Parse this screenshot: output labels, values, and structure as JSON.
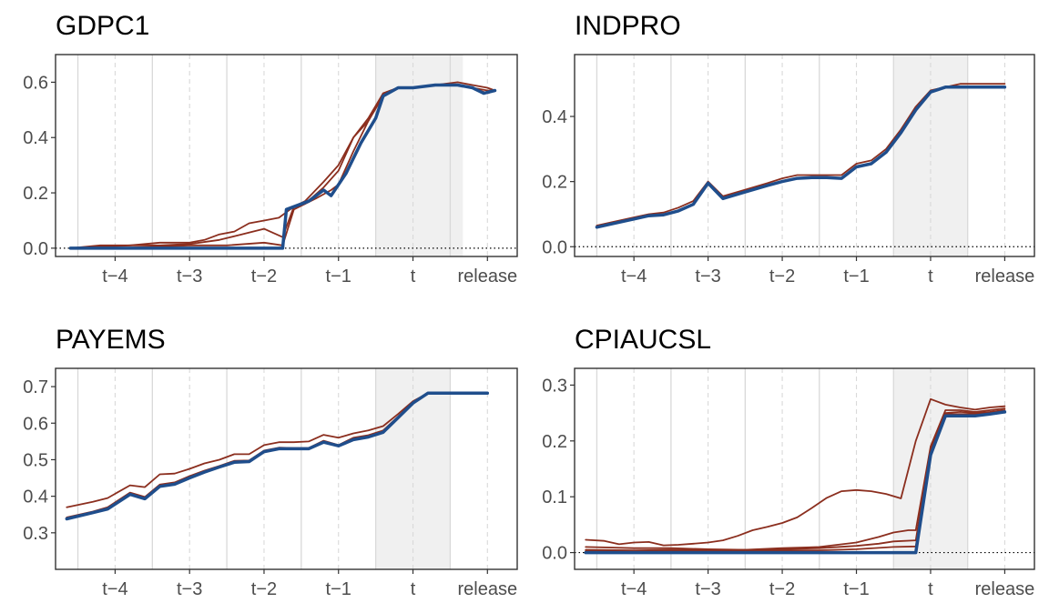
{
  "chart_data": [
    {
      "type": "line",
      "title": "GDPC1",
      "xlabel": "",
      "ylabel": "",
      "x_tick_labels": [
        "t−4",
        "t−3",
        "t−2",
        "t−1",
        "t",
        "release"
      ],
      "x_tick_positions": [
        -4,
        -3,
        -2,
        -1,
        0,
        1
      ],
      "xlim": [
        -4.8,
        1.4
      ],
      "ylim": [
        -0.03,
        0.7
      ],
      "y_ticks": [
        0.0,
        0.2,
        0.4,
        0.6
      ],
      "y_tick_labels": [
        "0.0",
        "0.2",
        "0.4",
        "0.6"
      ],
      "shaded_x": [
        -0.5,
        0.67
      ],
      "reference_line_y": 0,
      "grid": true,
      "series": [
        {
          "role": "estimate",
          "color": "#8B2E1E",
          "x": [
            -4.6,
            -4.2,
            -3.8,
            -3.4,
            -3.0,
            -2.8,
            -2.6,
            -2.4,
            -2.2,
            -2.0,
            -1.8,
            -1.6,
            -1.45,
            -1.2,
            -1.0,
            -0.8,
            -0.6,
            -0.4,
            -0.2,
            0.0,
            0.3,
            0.6,
            0.8,
            1.0,
            1.1
          ],
          "y": [
            0.0,
            0.01,
            0.01,
            0.02,
            0.02,
            0.03,
            0.05,
            0.06,
            0.09,
            0.1,
            0.11,
            0.15,
            0.17,
            0.24,
            0.3,
            0.4,
            0.47,
            0.56,
            0.58,
            0.58,
            0.59,
            0.6,
            0.59,
            0.58,
            0.57
          ]
        },
        {
          "role": "estimate",
          "color": "#8B2E1E",
          "x": [
            -4.6,
            -4.2,
            -3.8,
            -3.4,
            -3.0,
            -2.6,
            -2.3,
            -2.0,
            -1.75,
            -1.6,
            -1.45,
            -1.2,
            -1.0,
            -0.8,
            -0.6,
            -0.4,
            -0.2,
            0.0,
            0.3,
            0.6,
            0.8,
            1.0,
            1.1
          ],
          "y": [
            0.0,
            0.005,
            0.01,
            0.01,
            0.015,
            0.03,
            0.05,
            0.07,
            0.04,
            0.15,
            0.16,
            0.22,
            0.28,
            0.4,
            0.46,
            0.56,
            0.58,
            0.58,
            0.59,
            0.59,
            0.58,
            0.57,
            0.57
          ]
        },
        {
          "role": "estimate",
          "color": "#8B2E1E",
          "x": [
            -4.6,
            -4.0,
            -3.5,
            -3.0,
            -2.5,
            -2.0,
            -1.75,
            -1.6,
            -1.3,
            -1.1,
            -1.0,
            -0.8,
            -0.6,
            -0.4,
            -0.2,
            0.0,
            0.3,
            0.6,
            0.8,
            1.0,
            1.1
          ],
          "y": [
            0.0,
            0.0,
            0.005,
            0.01,
            0.01,
            0.02,
            0.01,
            0.14,
            0.18,
            0.21,
            0.23,
            0.35,
            0.46,
            0.55,
            0.58,
            0.58,
            0.59,
            0.59,
            0.58,
            0.56,
            0.57
          ]
        },
        {
          "role": "final",
          "color": "#1F4E8C",
          "x": [
            -4.6,
            -4.0,
            -3.5,
            -3.0,
            -2.5,
            -2.0,
            -1.75,
            -1.7,
            -1.4,
            -1.2,
            -1.1,
            -0.9,
            -0.7,
            -0.5,
            -0.4,
            -0.2,
            0.0,
            0.3,
            0.6,
            0.8,
            0.95,
            1.1
          ],
          "y": [
            0.0,
            0.0,
            0.0,
            0.0,
            0.0,
            0.0,
            0.0,
            0.14,
            0.17,
            0.21,
            0.19,
            0.27,
            0.38,
            0.47,
            0.55,
            0.58,
            0.58,
            0.59,
            0.59,
            0.58,
            0.56,
            0.57
          ]
        }
      ]
    },
    {
      "type": "line",
      "title": "INDPRO",
      "xlabel": "",
      "ylabel": "",
      "x_tick_labels": [
        "t−4",
        "t−3",
        "t−2",
        "t−1",
        "t",
        "release"
      ],
      "x_tick_positions": [
        -4,
        -3,
        -2,
        -1,
        0,
        1
      ],
      "xlim": [
        -4.8,
        1.4
      ],
      "ylim": [
        -0.03,
        0.59
      ],
      "y_ticks": [
        0.0,
        0.2,
        0.4
      ],
      "y_tick_labels": [
        "0.0",
        "0.2",
        "0.4"
      ],
      "shaded_x": [
        -0.5,
        0.5
      ],
      "reference_line_y": 0,
      "grid": true,
      "series": [
        {
          "role": "estimate",
          "color": "#8B2E1E",
          "x": [
            -4.5,
            -4.3,
            -4.0,
            -3.8,
            -3.6,
            -3.4,
            -3.2,
            -3.0,
            -2.8,
            -2.5,
            -2.2,
            -2.0,
            -1.8,
            -1.6,
            -1.4,
            -1.2,
            -1.0,
            -0.8,
            -0.6,
            -0.4,
            -0.2,
            0.0,
            0.2,
            0.4,
            0.6,
            0.8,
            1.0
          ],
          "y": [
            0.065,
            0.075,
            0.09,
            0.1,
            0.105,
            0.12,
            0.14,
            0.2,
            0.155,
            0.175,
            0.195,
            0.21,
            0.22,
            0.22,
            0.22,
            0.22,
            0.255,
            0.265,
            0.3,
            0.36,
            0.43,
            0.48,
            0.49,
            0.5,
            0.5,
            0.5,
            0.5
          ]
        },
        {
          "role": "final",
          "color": "#1F4E8C",
          "x": [
            -4.5,
            -4.3,
            -4.0,
            -3.8,
            -3.6,
            -3.4,
            -3.2,
            -3.0,
            -2.8,
            -2.5,
            -2.2,
            -2.0,
            -1.8,
            -1.6,
            -1.4,
            -1.2,
            -1.0,
            -0.8,
            -0.6,
            -0.4,
            -0.2,
            0.0,
            0.2,
            0.4,
            0.6,
            0.8,
            1.0
          ],
          "y": [
            0.06,
            0.07,
            0.085,
            0.095,
            0.098,
            0.11,
            0.13,
            0.195,
            0.148,
            0.168,
            0.188,
            0.2,
            0.21,
            0.212,
            0.212,
            0.21,
            0.245,
            0.255,
            0.29,
            0.35,
            0.42,
            0.475,
            0.49,
            0.49,
            0.49,
            0.49,
            0.49
          ]
        }
      ]
    },
    {
      "type": "line",
      "title": "PAYEMS",
      "xlabel": "",
      "ylabel": "",
      "x_tick_labels": [
        "t−4",
        "t−3",
        "t−2",
        "t−1",
        "t",
        "release"
      ],
      "x_tick_positions": [
        -4,
        -3,
        -2,
        -1,
        0,
        1
      ],
      "xlim": [
        -4.8,
        1.4
      ],
      "ylim": [
        0.2,
        0.75
      ],
      "y_ticks": [
        0.3,
        0.4,
        0.5,
        0.6,
        0.7
      ],
      "y_tick_labels": [
        "0.3",
        "0.4",
        "0.5",
        "0.6",
        "0.7"
      ],
      "shaded_x": [
        -0.5,
        0.5
      ],
      "reference_line_y": null,
      "grid": true,
      "series": [
        {
          "role": "estimate",
          "color": "#8B2E1E",
          "x": [
            -4.65,
            -4.3,
            -4.1,
            -3.8,
            -3.6,
            -3.4,
            -3.2,
            -3.0,
            -2.8,
            -2.6,
            -2.4,
            -2.2,
            -2.0,
            -1.8,
            -1.6,
            -1.4,
            -1.2,
            -1.0,
            -0.8,
            -0.6,
            -0.4,
            -0.2,
            0.0,
            0.2,
            0.4,
            0.6,
            0.8,
            1.0
          ],
          "y": [
            0.37,
            0.385,
            0.395,
            0.43,
            0.425,
            0.46,
            0.462,
            0.475,
            0.49,
            0.5,
            0.515,
            0.515,
            0.54,
            0.548,
            0.548,
            0.55,
            0.568,
            0.56,
            0.572,
            0.58,
            0.592,
            0.625,
            0.66,
            0.682,
            0.682,
            0.682,
            0.682,
            0.682
          ]
        },
        {
          "role": "estimate",
          "color": "#8B2E1E",
          "x": [
            -4.65,
            -4.3,
            -4.1,
            -3.8,
            -3.6,
            -3.4,
            -3.2,
            -3.0,
            -2.8,
            -2.6,
            -2.4,
            -2.2,
            -2.0,
            -1.8,
            -1.6,
            -1.4,
            -1.2,
            -1.0,
            -0.8,
            -0.6,
            -0.4,
            -0.2,
            0.0,
            0.2,
            0.4,
            0.6,
            0.8,
            1.0
          ],
          "y": [
            0.342,
            0.358,
            0.37,
            0.41,
            0.398,
            0.432,
            0.438,
            0.455,
            0.47,
            0.483,
            0.497,
            0.498,
            0.525,
            0.533,
            0.532,
            0.532,
            0.552,
            0.54,
            0.56,
            0.567,
            0.58,
            0.618,
            0.658,
            0.682,
            0.682,
            0.682,
            0.682,
            0.682
          ]
        },
        {
          "role": "final",
          "color": "#1F4E8C",
          "x": [
            -4.65,
            -4.3,
            -4.1,
            -3.8,
            -3.6,
            -3.4,
            -3.2,
            -3.0,
            -2.8,
            -2.6,
            -2.4,
            -2.2,
            -2.0,
            -1.8,
            -1.6,
            -1.4,
            -1.2,
            -1.0,
            -0.8,
            -0.6,
            -0.4,
            -0.2,
            0.0,
            0.2,
            0.4,
            0.6,
            0.8,
            1.0
          ],
          "y": [
            0.338,
            0.355,
            0.365,
            0.405,
            0.393,
            0.427,
            0.433,
            0.45,
            0.466,
            0.48,
            0.493,
            0.495,
            0.522,
            0.53,
            0.53,
            0.53,
            0.548,
            0.538,
            0.555,
            0.562,
            0.575,
            0.615,
            0.655,
            0.682,
            0.682,
            0.682,
            0.682,
            0.682
          ]
        }
      ]
    },
    {
      "type": "line",
      "title": "CPIAUCSL",
      "xlabel": "",
      "ylabel": "",
      "x_tick_labels": [
        "t−4",
        "t−3",
        "t−2",
        "t−1",
        "t",
        "release"
      ],
      "x_tick_positions": [
        -4,
        -3,
        -2,
        -1,
        0,
        1
      ],
      "xlim": [
        -4.8,
        1.4
      ],
      "ylim": [
        -0.03,
        0.33
      ],
      "y_ticks": [
        0.0,
        0.1,
        0.2,
        0.3
      ],
      "y_tick_labels": [
        "0.0",
        "0.1",
        "0.2",
        "0.3"
      ],
      "shaded_x": [
        -0.5,
        0.5
      ],
      "reference_line_y": 0,
      "grid": true,
      "series": [
        {
          "role": "estimate",
          "color": "#8B2E1E",
          "x": [
            -4.65,
            -4.4,
            -4.2,
            -4.0,
            -3.8,
            -3.6,
            -3.4,
            -3.2,
            -3.0,
            -2.8,
            -2.6,
            -2.4,
            -2.2,
            -2.0,
            -1.8,
            -1.6,
            -1.4,
            -1.2,
            -1.0,
            -0.8,
            -0.6,
            -0.4,
            -0.2,
            0.0,
            0.2,
            0.4,
            0.6,
            0.8,
            1.0
          ],
          "y": [
            0.023,
            0.021,
            0.015,
            0.018,
            0.019,
            0.013,
            0.014,
            0.016,
            0.018,
            0.022,
            0.03,
            0.04,
            0.046,
            0.053,
            0.063,
            0.08,
            0.098,
            0.11,
            0.112,
            0.11,
            0.105,
            0.097,
            0.2,
            0.275,
            0.265,
            0.26,
            0.256,
            0.26,
            0.262
          ]
        },
        {
          "role": "estimate",
          "color": "#8B2E1E",
          "x": [
            -4.65,
            -4.0,
            -3.5,
            -3.0,
            -2.5,
            -2.0,
            -1.5,
            -1.0,
            -0.7,
            -0.5,
            -0.3,
            -0.2,
            0.0,
            0.2,
            0.4,
            0.6,
            0.8,
            1.0
          ],
          "y": [
            0.01,
            0.008,
            0.008,
            0.006,
            0.005,
            0.008,
            0.01,
            0.018,
            0.028,
            0.036,
            0.04,
            0.04,
            0.19,
            0.255,
            0.255,
            0.252,
            0.255,
            0.258
          ]
        },
        {
          "role": "estimate",
          "color": "#8B2E1E",
          "x": [
            -4.65,
            -4.0,
            -3.5,
            -3.0,
            -2.5,
            -2.0,
            -1.5,
            -1.0,
            -0.7,
            -0.5,
            -0.2,
            0.0,
            0.2,
            0.4,
            0.6,
            0.8,
            1.0
          ],
          "y": [
            0.005,
            0.004,
            0.005,
            0.004,
            0.005,
            0.006,
            0.008,
            0.012,
            0.016,
            0.02,
            0.022,
            0.185,
            0.25,
            0.252,
            0.25,
            0.252,
            0.255
          ]
        },
        {
          "role": "estimate",
          "color": "#8B2E1E",
          "x": [
            -4.65,
            -4.0,
            -3.5,
            -3.0,
            -2.5,
            -2.0,
            -1.5,
            -1.0,
            -0.5,
            -0.2,
            0.0,
            0.2,
            0.4,
            0.6,
            0.8,
            1.0
          ],
          "y": [
            0.003,
            0.002,
            0.003,
            0.002,
            0.003,
            0.004,
            0.004,
            0.006,
            0.01,
            0.011,
            0.182,
            0.248,
            0.248,
            0.248,
            0.25,
            0.252
          ]
        },
        {
          "role": "final",
          "color": "#1F4E8C",
          "x": [
            -4.65,
            -4.0,
            -3.5,
            -3.0,
            -2.5,
            -2.0,
            -1.5,
            -1.0,
            -0.5,
            -0.2,
            0.0,
            0.2,
            0.4,
            0.6,
            0.8,
            1.0
          ],
          "y": [
            0.0,
            0.0,
            0.0,
            0.0,
            0.0,
            0.0,
            0.0,
            0.0,
            0.0,
            0.0,
            0.175,
            0.245,
            0.245,
            0.245,
            0.248,
            0.252
          ]
        }
      ]
    }
  ]
}
